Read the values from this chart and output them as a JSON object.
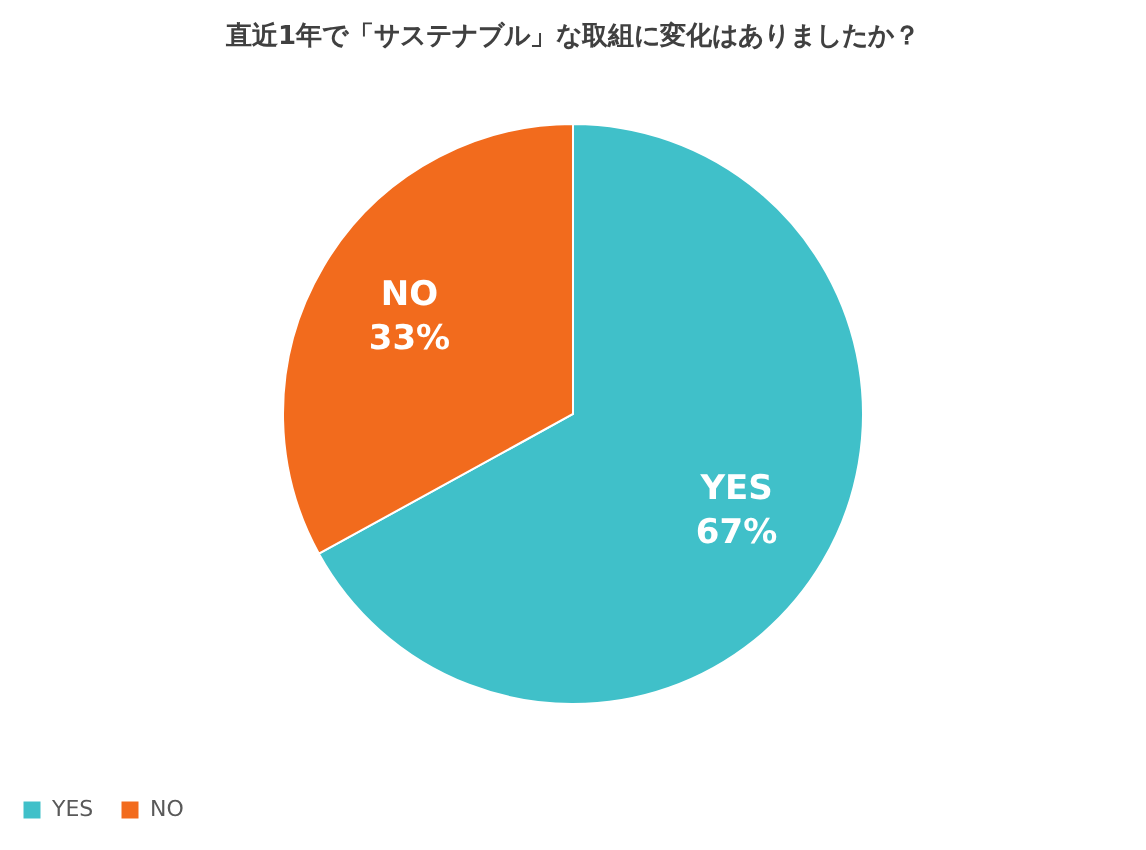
{
  "chart_data": {
    "type": "pie",
    "title": "直近1年で「サステナブル」な取組に変化はありましたか？",
    "categories": [
      "YES",
      "NO"
    ],
    "values": [
      67,
      33
    ],
    "colors": [
      "#40c0c9",
      "#f26b1d"
    ],
    "value_labels": [
      "67%",
      "33%"
    ],
    "legend": "bottom"
  }
}
